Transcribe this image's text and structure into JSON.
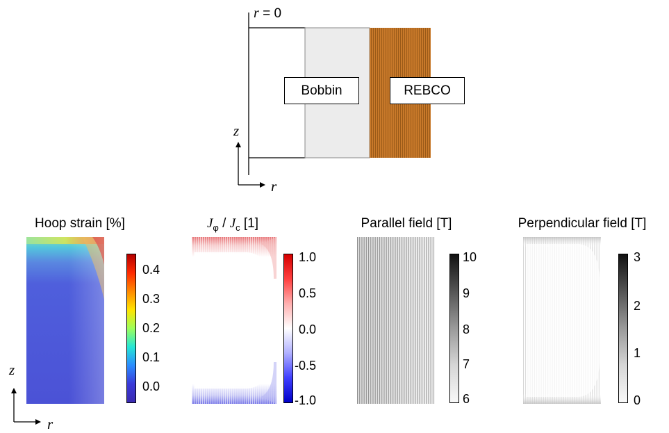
{
  "schematic": {
    "axis_origin_label": "r = 0",
    "axis_origin_var": "r",
    "axis_origin_eq": " = 0",
    "z_label": "z",
    "r_label": "r",
    "bobbin_label": "Bobbin",
    "rebco_label": "REBCO",
    "colors": {
      "bobbin": "#ececec",
      "rebco": "#c8792a"
    }
  },
  "panels": [
    {
      "title": "Hoop strain [%]",
      "colorbar": "jet",
      "ticks": [
        "0.4",
        "0.3",
        "0.2",
        "0.1",
        "0.0"
      ]
    },
    {
      "title_parts": [
        "J",
        "φ",
        " / ",
        "J",
        "c",
        " [1]"
      ],
      "colorbar": "bwr",
      "ticks": [
        "1.0",
        "0.5",
        "0.0",
        "-0.5",
        "-1.0"
      ]
    },
    {
      "title": "Parallel field [T]",
      "colorbar": "gray",
      "ticks": [
        "10",
        "9",
        "8",
        "7",
        "6"
      ]
    },
    {
      "title": "Perpendicular field [T]",
      "colorbar": "gray",
      "ticks": [
        "3",
        "2",
        "1",
        "0"
      ]
    }
  ],
  "bottom_axes": {
    "z_label": "z",
    "r_label": "r"
  }
}
